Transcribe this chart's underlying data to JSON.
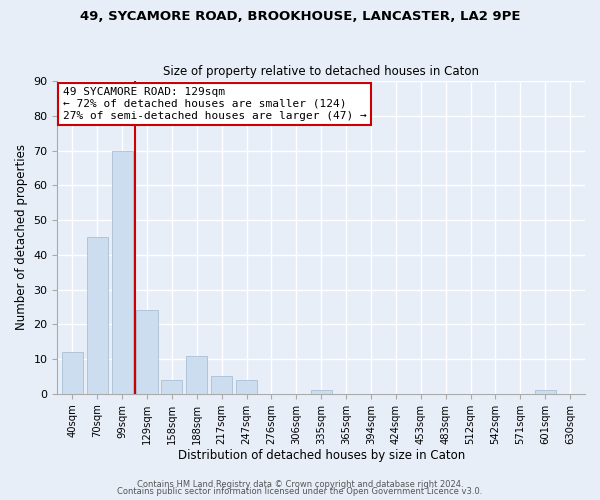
{
  "title": "49, SYCAMORE ROAD, BROOKHOUSE, LANCASTER, LA2 9PE",
  "subtitle": "Size of property relative to detached houses in Caton",
  "xlabel": "Distribution of detached houses by size in Caton",
  "ylabel": "Number of detached properties",
  "bar_labels": [
    "40sqm",
    "70sqm",
    "99sqm",
    "129sqm",
    "158sqm",
    "188sqm",
    "217sqm",
    "247sqm",
    "276sqm",
    "306sqm",
    "335sqm",
    "365sqm",
    "394sqm",
    "424sqm",
    "453sqm",
    "483sqm",
    "512sqm",
    "542sqm",
    "571sqm",
    "601sqm",
    "630sqm"
  ],
  "bar_values": [
    12,
    45,
    70,
    24,
    4,
    11,
    5,
    4,
    0,
    0,
    1,
    0,
    0,
    0,
    0,
    0,
    0,
    0,
    0,
    1,
    0
  ],
  "highlight_index": 3,
  "normal_color": "#ccddf0",
  "vline_color": "#cc0000",
  "annotation_text": "49 SYCAMORE ROAD: 129sqm\n← 72% of detached houses are smaller (124)\n27% of semi-detached houses are larger (47) →",
  "annotation_box_color": "#ffffff",
  "annotation_box_edgecolor": "#cc0000",
  "ylim": [
    0,
    90
  ],
  "yticks": [
    0,
    10,
    20,
    30,
    40,
    50,
    60,
    70,
    80,
    90
  ],
  "footer_line1": "Contains HM Land Registry data © Crown copyright and database right 2024.",
  "footer_line2": "Contains public sector information licensed under the Open Government Licence v3.0.",
  "bg_color": "#e8eef8",
  "grid_color": "#ffffff"
}
